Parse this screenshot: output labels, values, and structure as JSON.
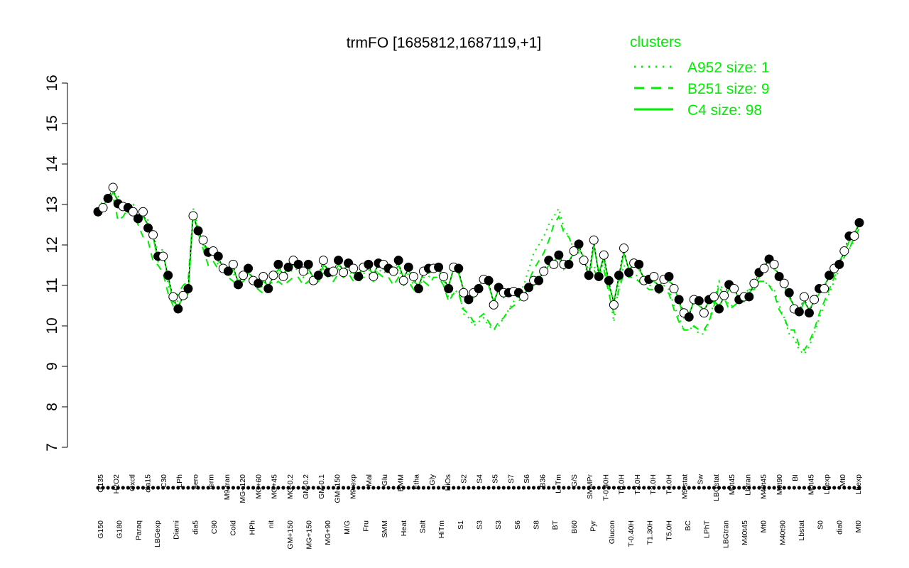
{
  "chart_data": {
    "type": "line",
    "title": "trmFO [1685812,1687119,+1]",
    "xlabel": "",
    "ylabel": "",
    "ylim": [
      7,
      16
    ],
    "yticks": [
      7,
      8,
      9,
      10,
      11,
      12,
      13,
      14,
      15,
      16
    ],
    "grid": false,
    "legend": {
      "title": "clusters",
      "placement": "top-right",
      "entries": [
        {
          "label": "A952 size: 1",
          "style": "dotted"
        },
        {
          "label": "B251 size: 9",
          "style": "dashed"
        },
        {
          "label": "C4 size: 98",
          "style": "solid"
        }
      ]
    },
    "colors": {
      "clusters": "#00ee00",
      "points": "#000000",
      "axis": "#000000"
    },
    "x_labels_upper": [
      "G135",
      "H2O2",
      "Oxctl",
      "dia15",
      "C30",
      "LPh",
      "aero",
      "ferm",
      "M9-tran",
      "MG+120",
      "MG+60",
      "MG+45",
      "MG-0.2",
      "GM-0.2",
      "GM-0.1",
      "GM+150",
      "M9-exp",
      "Mal",
      "Glu",
      "BMM",
      "Etha",
      "Gly",
      "HiOs",
      "S2",
      "S4",
      "S5",
      "S7",
      "S6",
      "B36",
      "LoTm",
      "G/S",
      "SMMPr",
      "T-0.40H",
      "T0.0H",
      "T2.0H",
      "T3.0H",
      "T4.0H",
      "M9-stat",
      "Sw",
      "LBGstat",
      "M0t45",
      "Lbtran",
      "M40t45",
      "M0t90",
      "BI",
      "M0t45",
      "Lbexp",
      "Mt0",
      "Lbexp"
    ],
    "x_labels_lower": [
      "G150",
      "G180",
      "Paraq",
      "LBGexp",
      "Diami",
      "dia5",
      "C90",
      "Cold",
      "HPh",
      "nit",
      "GM+150",
      "MG+150",
      "MG+90",
      "M/G",
      "Fru",
      "SMM",
      "Heat",
      "Salt",
      "HiTm",
      "S1",
      "S3",
      "S3",
      "S6",
      "S8",
      "BT",
      "B60",
      "Pyr",
      "Glucon",
      "T-0.40H",
      "T1.30H",
      "T5.0H",
      "BC",
      "LPhT",
      "LBGtran",
      "M40t45",
      "Mt0",
      "M40t90",
      "Lbstat",
      "S0",
      "dia0",
      "Mt0"
    ],
    "series": [
      {
        "name": "C4 size: 98",
        "style": "solid",
        "y": [
          12.7,
          13.0,
          13.1,
          13.3,
          13.1,
          12.9,
          12.8,
          12.9,
          12.6,
          12.7,
          12.5,
          12.2,
          11.6,
          11.8,
          11.2,
          10.6,
          10.5,
          10.7,
          10.8,
          12.8,
          12.3,
          12.0,
          11.9,
          11.8,
          11.6,
          11.5,
          11.3,
          11.4,
          11.1,
          11.2,
          11.3,
          11.2,
          11.0,
          11.1,
          11.0,
          11.2,
          11.4,
          11.3,
          11.4,
          11.5,
          11.6,
          11.3,
          11.4,
          11.2,
          11.2,
          11.5,
          11.4,
          11.3,
          11.5,
          11.4,
          11.5,
          11.3,
          11.3,
          11.4,
          11.4,
          11.3,
          11.5,
          11.4,
          11.5,
          11.3,
          11.5,
          11.2,
          11.4,
          11.1,
          11.0,
          11.3,
          11.3,
          11.5,
          11.4,
          11.1,
          11.0,
          11.4,
          11.3,
          10.9,
          10.6,
          10.7,
          11.0,
          11.1,
          11.0,
          10.6,
          10.9,
          10.7,
          10.9,
          10.8,
          10.7,
          10.8,
          10.9,
          11.0,
          11.2,
          11.3,
          11.5,
          11.6,
          11.7,
          11.4,
          11.6,
          11.8,
          11.9,
          11.7,
          11.2,
          12.0,
          11.3,
          11.7,
          11.0,
          10.6,
          11.2,
          11.8,
          11.4,
          11.5,
          11.4,
          11.2,
          11.1,
          11.1,
          11.0,
          11.1,
          11.1,
          11.0,
          10.6,
          10.2,
          10.3,
          10.6,
          10.5,
          10.4,
          10.6,
          10.6,
          10.5,
          10.7,
          10.9,
          11.0,
          10.6,
          10.6,
          10.8,
          11.0,
          11.2,
          11.5,
          11.6,
          11.4,
          11.3,
          11.0,
          10.7,
          10.5,
          10.3,
          10.6,
          10.4,
          10.6,
          10.8,
          11.0,
          11.2,
          11.3,
          11.6,
          11.8,
          12.1,
          12.3,
          12.5
        ]
      },
      {
        "name": "B251 size: 9",
        "style": "dashed",
        "y": [
          12.8,
          13.0,
          13.1,
          13.2,
          12.6,
          12.7,
          12.9,
          12.8,
          12.5,
          12.2,
          12.1,
          11.6,
          11.5,
          11.3,
          10.8,
          10.5,
          10.8,
          11.0,
          11.1,
          12.8,
          12.3,
          11.9,
          11.5,
          11.6,
          11.4,
          11.4,
          11.2,
          11.1,
          11.0,
          11.1,
          11.2,
          11.0,
          10.9,
          10.8,
          10.9,
          11.0,
          11.1,
          11.0,
          11.1,
          11.2,
          11.2,
          11.0,
          11.1,
          11.0,
          11.1,
          11.3,
          11.2,
          11.1,
          11.3,
          11.2,
          11.3,
          11.1,
          11.1,
          11.2,
          11.2,
          11.1,
          11.3,
          11.2,
          11.2,
          11.0,
          11.2,
          11.0,
          11.1,
          10.9,
          10.8,
          11.1,
          11.0,
          11.2,
          11.2,
          11.0,
          10.6,
          10.8,
          10.8,
          10.4,
          10.3,
          10.1,
          10.2,
          10.3,
          10.1,
          9.9,
          10.1,
          10.2,
          10.4,
          10.5,
          10.6,
          10.8,
          11.1,
          11.4,
          11.6,
          11.8,
          12.1,
          12.5,
          12.7,
          12.3,
          12.2,
          11.9,
          11.7,
          11.5,
          11.3,
          11.4,
          11.1,
          11.4,
          10.8,
          10.3,
          10.9,
          11.3,
          11.2,
          11.2,
          11.1,
          11.0,
          10.9,
          10.9,
          10.8,
          10.9,
          10.8,
          10.4,
          10.1,
          9.9,
          9.9,
          10.0,
          9.9,
          9.9,
          10.1,
          10.5,
          11.0,
          10.7,
          10.4,
          10.5,
          10.6,
          10.8,
          10.9,
          10.9,
          11.1,
          11.1,
          11.0,
          10.8,
          10.4,
          10.2,
          9.9,
          9.9,
          9.5,
          9.4,
          9.6,
          9.9,
          10.3,
          10.6,
          10.9,
          11.2,
          11.5,
          11.7,
          11.9,
          12.2,
          12.4
        ]
      },
      {
        "name": "A952 size: 1",
        "style": "dotted",
        "y": [
          12.9,
          13.1,
          13.2,
          13.3,
          13.2,
          13.0,
          12.9,
          13.0,
          12.8,
          12.8,
          12.6,
          12.3,
          11.8,
          11.9,
          11.0,
          10.7,
          10.6,
          10.7,
          10.7,
          12.9,
          12.4,
          12.1,
          11.7,
          11.8,
          11.5,
          11.5,
          11.3,
          11.3,
          11.1,
          11.2,
          11.2,
          11.1,
          10.9,
          11.0,
          11.0,
          11.1,
          11.3,
          11.2,
          11.3,
          11.4,
          11.4,
          11.2,
          11.3,
          11.1,
          11.1,
          11.4,
          11.3,
          11.2,
          11.4,
          11.3,
          11.4,
          11.2,
          11.2,
          11.3,
          11.3,
          11.2,
          11.4,
          11.3,
          11.4,
          11.2,
          11.4,
          11.1,
          11.3,
          11.0,
          10.9,
          11.2,
          11.2,
          11.4,
          11.3,
          11.0,
          10.7,
          10.8,
          10.9,
          10.3,
          10.2,
          10.0,
          10.1,
          10.2,
          10.0,
          9.9,
          10.0,
          10.2,
          10.4,
          10.6,
          10.8,
          11.0,
          11.4,
          11.8,
          12.0,
          12.2,
          12.5,
          12.7,
          12.9,
          12.4,
          12.2,
          11.9,
          11.8,
          11.6,
          11.4,
          11.5,
          11.2,
          11.6,
          10.9,
          10.1,
          11.0,
          11.5,
          11.3,
          11.3,
          11.2,
          11.1,
          11.0,
          11.0,
          10.9,
          11.0,
          10.9,
          10.5,
          10.2,
          9.9,
          9.9,
          10.0,
          9.8,
          9.8,
          10.1,
          10.6,
          11.1,
          10.8,
          10.5,
          10.5,
          10.6,
          10.8,
          10.9,
          11.0,
          11.1,
          11.1,
          11.0,
          10.9,
          10.5,
          10.2,
          9.8,
          9.7,
          9.4,
          9.3,
          9.5,
          9.8,
          10.2,
          10.5,
          10.8,
          11.1,
          11.4,
          11.7,
          11.9,
          12.1,
          12.4
        ]
      }
    ],
    "points_filled_pattern": "alternating"
  }
}
